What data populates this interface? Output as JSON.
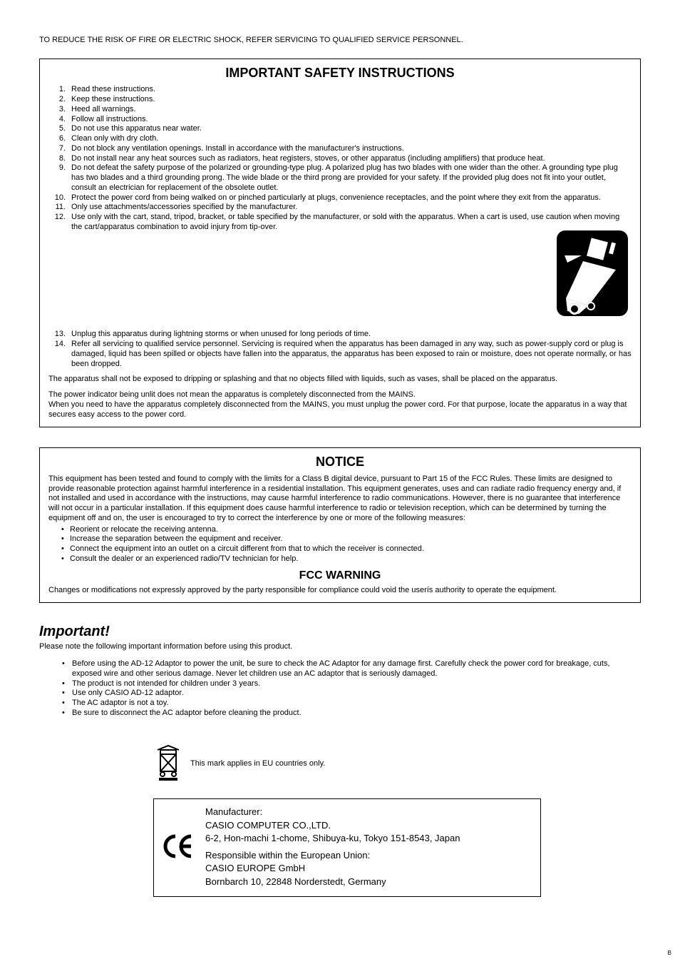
{
  "colors": {
    "text": "#000000",
    "background": "#ffffff",
    "border": "#000000"
  },
  "top_line": "TO REDUCE THE RISK OF FIRE OR ELECTRIC SHOCK, REFER SERVICING TO QUALIFIED SERVICE PERSONNEL.",
  "safety_box": {
    "title": "IMPORTANT SAFETY INSTRUCTIONS",
    "items": [
      "Read these instructions.",
      "Keep these instructions.",
      "Heed all warnings.",
      "Follow all instructions.",
      "Do not use this apparatus near water.",
      "Clean only with dry cloth.",
      "Do not block any ventilation openings. Install in accordance with the manufacturer's instructions.",
      "Do not install near any heat sources such as radiators, heat registers, stoves, or other apparatus (including amplifiers) that produce heat.",
      "Do not defeat the safety purpose of the polarized or grounding-type plug. A polarized plug has two blades with one wider than the other. A grounding type plug has two blades and a third grounding prong. The wide blade or the third prong are provided for your safety. If the provided plug does not fit into your outlet, consult an electrician for replacement of the obsolete outlet.",
      "Protect the power cord from being walked on or pinched particularly at plugs, convenience receptacles, and the point where they exit from the apparatus.",
      "Only use attachments/accessories specified by the manufacturer.",
      "Use only with the cart, stand, tripod, bracket, or table specified by the manufacturer, or sold with the apparatus. When a cart is used, use caution when moving the cart/apparatus combination to avoid injury from tip-over."
    ],
    "items_after_img": [
      "Unplug this apparatus during lightning storms or when unused for long periods of time.",
      "Refer all servicing to qualified service personnel. Servicing is required when the apparatus has been damaged in any way, such as power-supply cord or plug is damaged, liquid has been spilled or objects have fallen into the apparatus, the apparatus has been exposed to rain or moisture, does not operate normally, or has been dropped."
    ],
    "para1": "The apparatus shall not be exposed to dripping or splashing and that no objects filled with liquids, such as vases, shall be placed on the apparatus.",
    "para2": "The power indicator being unlit does not mean the apparatus is completely disconnected from the MAINS.\nWhen you need to have the apparatus completely disconnected from the MAINS, you must unplug the power cord. For that purpose, locate the apparatus in a way that secures easy access to the power cord."
  },
  "notice_box": {
    "title": "NOTICE",
    "text": "This equipment has been tested and found to comply with the limits for a Class B digital device, pursuant to Part 15 of the FCC Rules. These limits are designed to provide reasonable protection against harmful interference in a residential installation. This equipment generates, uses and can radiate radio frequency energy and, if not installed and used in accordance with the instructions, may cause harmful interference to radio communications. However, there is no guarantee that interference will not occur in a particular installation. If this equipment does cause harmful interference to radio or television reception, which can be determined by turning the equipment off and on, the user is encouraged to try to correct the interference by one or more of the following measures:",
    "bullets": [
      "Reorient or relocate the receiving antenna.",
      "Increase the separation between the equipment and receiver.",
      "Connect the equipment into an outlet on a circuit different from that to which the receiver is connected.",
      "Consult the dealer or an experienced radio/TV technician for help."
    ],
    "fcc_title": "FCC WARNING",
    "fcc_text": "Changes or modifications not expressly approved by the party responsible for compliance could void the userís authority to operate the equipment."
  },
  "important": {
    "heading": "Important!",
    "sub": "Please note the following important information before using this product.",
    "bullets": [
      "Before using the AD-12 Adaptor to power the unit, be sure to check the AC Adaptor for any damage first. Carefully check the power cord for breakage, cuts, exposed wire and other serious damage. Never let children use an AC adaptor that is seriously damaged.",
      "The product is not intended for children under 3 years.",
      "Use only CASIO AD-12 adaptor.",
      "The AC adaptor is not a toy.",
      "Be sure to disconnect the AC adaptor before cleaning the product."
    ]
  },
  "eu_mark_text": "This mark applies in EU countries only.",
  "manufacturer": {
    "l1": "Manufacturer:",
    "l2": "CASIO COMPUTER CO.,LTD.",
    "l3": "6-2, Hon-machi 1-chome, Shibuya-ku, Tokyo 151-8543, Japan",
    "l4": "Responsible within the European Union:",
    "l5": "CASIO EUROPE GmbH",
    "l6": "Bornbarch 10, 22848 Norderstedt, Germany"
  },
  "page_mark": "B"
}
